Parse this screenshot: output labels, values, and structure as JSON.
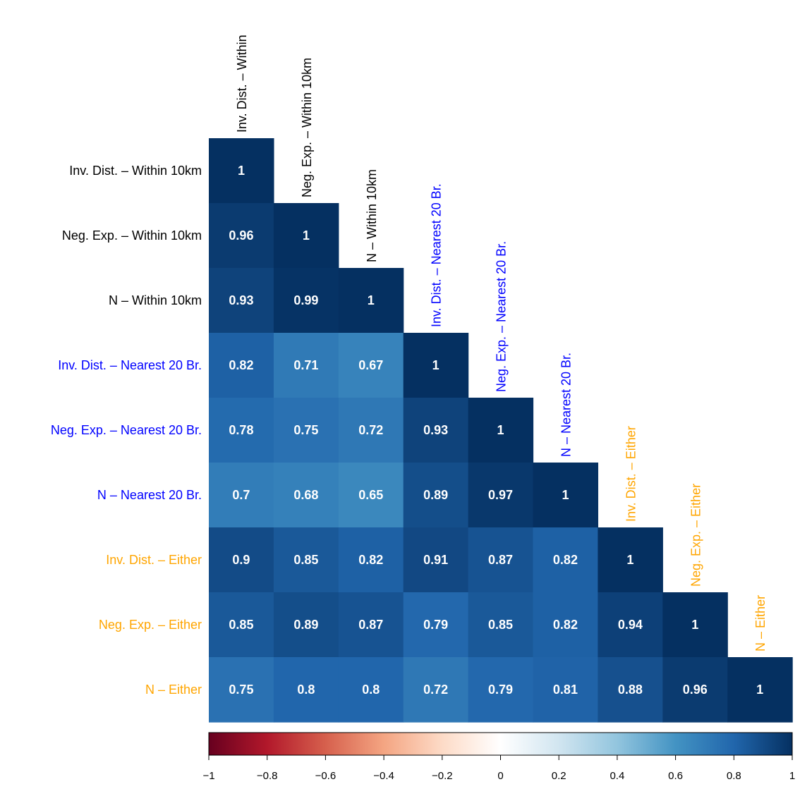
{
  "chart_data": {
    "type": "heatmap",
    "subtype": "lower-triangular correlation matrix",
    "title": "",
    "variables": [
      {
        "row_label": "Inv. Dist. – Within 10km",
        "col_label": "Inv. Dist. – Within",
        "group": "within"
      },
      {
        "row_label": "Neg. Exp. – Within 10km",
        "col_label": "Neg. Exp. – Within 10km",
        "group": "within"
      },
      {
        "row_label": "N – Within 10km",
        "col_label": "N – Within 10km",
        "group": "within"
      },
      {
        "row_label": "Inv. Dist. – Nearest 20 Br.",
        "col_label": "Inv. Dist. – Nearest 20 Br.",
        "group": "nearest"
      },
      {
        "row_label": "Neg. Exp. – Nearest 20 Br.",
        "col_label": "Neg. Exp. – Nearest 20 Br.",
        "group": "nearest"
      },
      {
        "row_label": "N – Nearest 20 Br.",
        "col_label": "N – Nearest 20 Br.",
        "group": "nearest"
      },
      {
        "row_label": "Inv. Dist. – Either",
        "col_label": "Inv. Dist. – Either",
        "group": "either"
      },
      {
        "row_label": "Neg. Exp. – Either",
        "col_label": "Neg. Exp. – Either",
        "group": "either"
      },
      {
        "row_label": "N – Either",
        "col_label": "N – Either",
        "group": "either"
      }
    ],
    "group_colors": {
      "within": "#000000",
      "nearest": "#0000FF",
      "either": "#FFA500"
    },
    "values": [
      [
        "1"
      ],
      [
        "0.96",
        "1"
      ],
      [
        "0.93",
        "0.99",
        "1"
      ],
      [
        "0.82",
        "0.71",
        "0.67",
        "1"
      ],
      [
        "0.78",
        "0.75",
        "0.72",
        "0.93",
        "1"
      ],
      [
        "0.7",
        "0.68",
        "0.65",
        "0.89",
        "0.97",
        "1"
      ],
      [
        "0.9",
        "0.85",
        "0.82",
        "0.91",
        "0.87",
        "0.82",
        "1"
      ],
      [
        "0.85",
        "0.89",
        "0.87",
        "0.79",
        "0.85",
        "0.82",
        "0.94",
        "1"
      ],
      [
        "0.75",
        "0.8",
        "0.8",
        "0.72",
        "0.79",
        "0.81",
        "0.88",
        "0.96",
        "1"
      ]
    ],
    "color_scale": {
      "range": [
        -1,
        1
      ],
      "palette": "RdBu",
      "stops": [
        {
          "v": -1.0,
          "c": "#67001F"
        },
        {
          "v": -0.8,
          "c": "#B2182B"
        },
        {
          "v": -0.6,
          "c": "#D6604D"
        },
        {
          "v": -0.4,
          "c": "#F4A582"
        },
        {
          "v": -0.2,
          "c": "#FDDBC7"
        },
        {
          "v": 0.0,
          "c": "#FFFFFF"
        },
        {
          "v": 0.2,
          "c": "#D1E5F0"
        },
        {
          "v": 0.4,
          "c": "#92C5DE"
        },
        {
          "v": 0.6,
          "c": "#4393C3"
        },
        {
          "v": 0.8,
          "c": "#2166AC"
        },
        {
          "v": 1.0,
          "c": "#053061"
        }
      ],
      "ticks": [
        "−1",
        "−0.8",
        "−0.6",
        "−0.4",
        "−0.2",
        "0",
        "0.2",
        "0.4",
        "0.6",
        "0.8",
        "1"
      ]
    },
    "legend_placement": "bottom"
  }
}
